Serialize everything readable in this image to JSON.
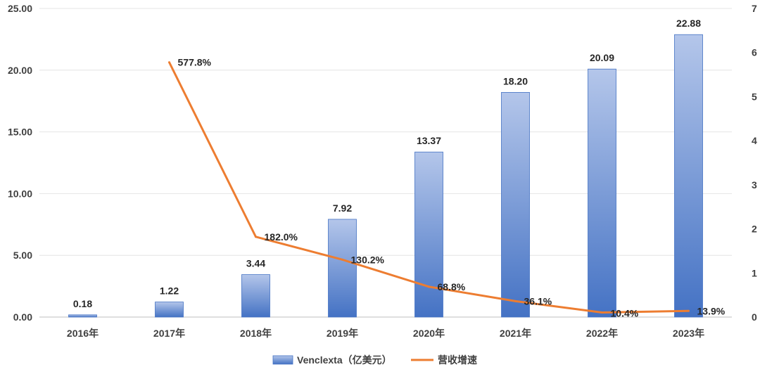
{
  "chart_data": {
    "type": "bar",
    "categories": [
      "2016年",
      "2017年",
      "2018年",
      "2019年",
      "2020年",
      "2021年",
      "2022年",
      "2023年"
    ],
    "series": [
      {
        "name": "Venclexta（亿美元）",
        "type": "bar",
        "axis": "left",
        "values": [
          0.18,
          1.22,
          3.44,
          7.92,
          13.37,
          18.2,
          20.09,
          22.88
        ],
        "labels": [
          "0.18",
          "1.22",
          "3.44",
          "7.92",
          "13.37",
          "18.20",
          "20.09",
          "22.88"
        ],
        "color_top": "#b4c6ea",
        "color_bottom": "#4472c4"
      },
      {
        "name": "营收增速",
        "type": "line",
        "axis": "right",
        "values": [
          null,
          5.778,
          1.82,
          1.302,
          0.688,
          0.361,
          0.104,
          0.139
        ],
        "labels": [
          "",
          "577.8%",
          "182.0%",
          "130.2%",
          "68.8%",
          "36.1%",
          "10.4%",
          "13.9%"
        ],
        "color": "#ed7d31"
      }
    ],
    "y_left": {
      "ylim": [
        0,
        25
      ],
      "ticks": [
        "0.00",
        "5.00",
        "10.00",
        "15.00",
        "20.00",
        "25.00"
      ],
      "tick_values": [
        0,
        5,
        10,
        15,
        20,
        25
      ]
    },
    "y_right": {
      "ylim": [
        0,
        7
      ],
      "ticks": [
        "0",
        "1",
        "2",
        "3",
        "4",
        "5",
        "6",
        "7"
      ],
      "tick_values": [
        0,
        1,
        2,
        3,
        4,
        5,
        6,
        7
      ]
    },
    "grid": true,
    "legend": "bottom-center",
    "title": "",
    "xlabel": "",
    "ylabel": ""
  }
}
